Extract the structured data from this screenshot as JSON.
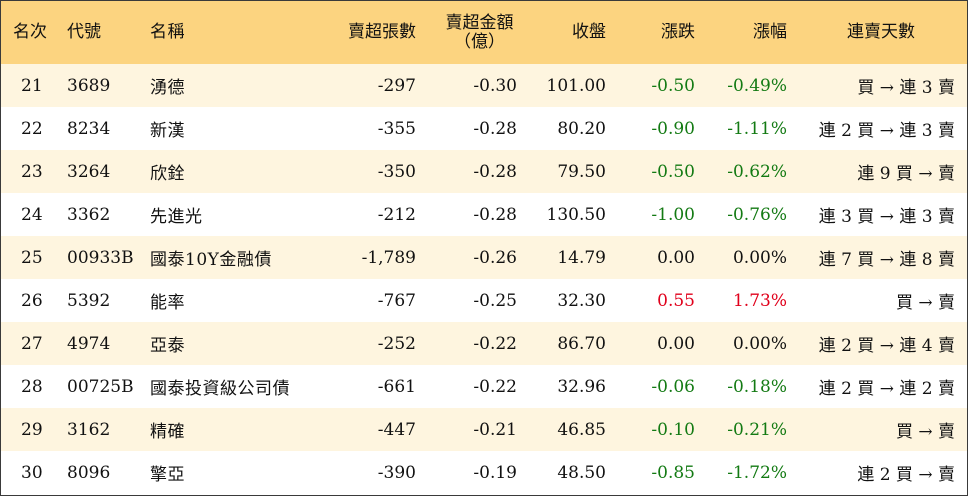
{
  "headers": {
    "rank": "名次",
    "code": "代號",
    "name": "名稱",
    "net_sell_shares": "賣超張數",
    "net_sell_amount_line1": "賣超金額",
    "net_sell_amount_line2": "（億）",
    "close": "收盤",
    "change": "漲跌",
    "change_pct": "漲幅",
    "consecutive_days": "連賣天數"
  },
  "colors": {
    "header_bg": "#fcd480",
    "row_alt_bg": "#fef5df",
    "up": "#e0001b",
    "down": "#137a13"
  },
  "rows": [
    {
      "rank": "21",
      "code": "3689",
      "name": "湧德",
      "shares": "-297",
      "amount": "-0.30",
      "close": "101.00",
      "change": "-0.50",
      "pct": "-0.49%",
      "days": "買 → 連 3 賣",
      "trend": "down"
    },
    {
      "rank": "22",
      "code": "8234",
      "name": "新漢",
      "shares": "-355",
      "amount": "-0.28",
      "close": "80.20",
      "change": "-0.90",
      "pct": "-1.11%",
      "days": "連 2 買 → 連 3 賣",
      "trend": "down"
    },
    {
      "rank": "23",
      "code": "3264",
      "name": "欣銓",
      "shares": "-350",
      "amount": "-0.28",
      "close": "79.50",
      "change": "-0.50",
      "pct": "-0.62%",
      "days": "連 9 買 → 賣",
      "trend": "down"
    },
    {
      "rank": "24",
      "code": "3362",
      "name": "先進光",
      "shares": "-212",
      "amount": "-0.28",
      "close": "130.50",
      "change": "-1.00",
      "pct": "-0.76%",
      "days": "連 3 買 → 連 3 賣",
      "trend": "down"
    },
    {
      "rank": "25",
      "code": "00933B",
      "name": "國泰10Y金融債",
      "shares": "-1,789",
      "amount": "-0.26",
      "close": "14.79",
      "change": "0.00",
      "pct": "0.00%",
      "days": "連 7 買 → 連 8 賣",
      "trend": "flat"
    },
    {
      "rank": "26",
      "code": "5392",
      "name": "能率",
      "shares": "-767",
      "amount": "-0.25",
      "close": "32.30",
      "change": "0.55",
      "pct": "1.73%",
      "days": "買 → 賣",
      "trend": "up"
    },
    {
      "rank": "27",
      "code": "4974",
      "name": "亞泰",
      "shares": "-252",
      "amount": "-0.22",
      "close": "86.70",
      "change": "0.00",
      "pct": "0.00%",
      "days": "連 2 買 → 連 4 賣",
      "trend": "flat"
    },
    {
      "rank": "28",
      "code": "00725B",
      "name": "國泰投資級公司債",
      "shares": "-661",
      "amount": "-0.22",
      "close": "32.96",
      "change": "-0.06",
      "pct": "-0.18%",
      "days": "連 2 買 → 連 2 賣",
      "trend": "down"
    },
    {
      "rank": "29",
      "code": "3162",
      "name": "精確",
      "shares": "-447",
      "amount": "-0.21",
      "close": "46.85",
      "change": "-0.10",
      "pct": "-0.21%",
      "days": "買 → 賣",
      "trend": "down"
    },
    {
      "rank": "30",
      "code": "8096",
      "name": "擎亞",
      "shares": "-390",
      "amount": "-0.19",
      "close": "48.50",
      "change": "-0.85",
      "pct": "-1.72%",
      "days": "連 2 買 → 賣",
      "trend": "down"
    }
  ]
}
